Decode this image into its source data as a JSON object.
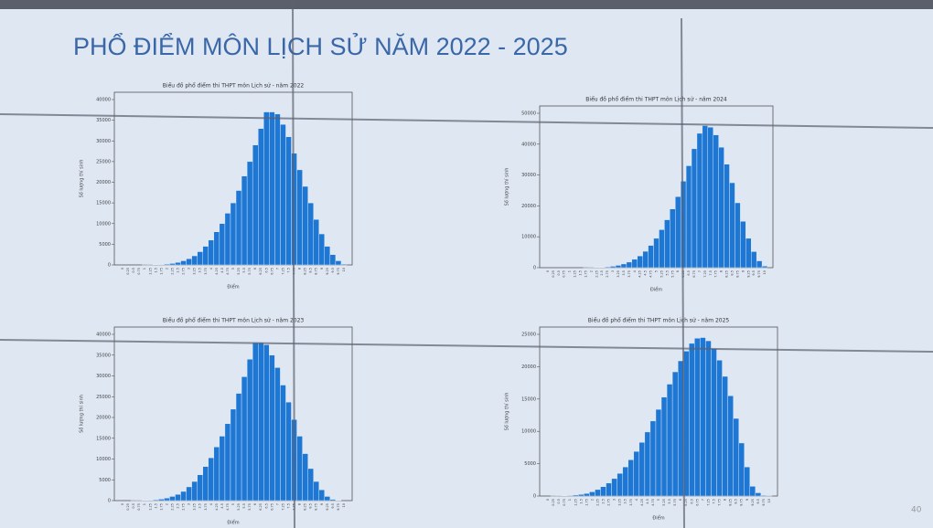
{
  "title": "PHỔ ĐIỂM MÔN LỊCH SỬ NĂM 2022 - 2025",
  "page_number": "40",
  "chart_data": [
    {
      "type": "bar",
      "title": "Biểu đồ phổ điểm thi THPT môn Lịch sử - năm 2022",
      "x_label": "Điểm",
      "y_label": "Số lượng thí sinh",
      "categories": [
        "0",
        "0.25",
        "0.5",
        "0.75",
        "1",
        "1.25",
        "1.5",
        "1.75",
        "2",
        "2.25",
        "2.5",
        "2.75",
        "3",
        "3.25",
        "3.5",
        "3.75",
        "4",
        "4.25",
        "4.5",
        "4.75",
        "5",
        "5.25",
        "5.5",
        "5.75",
        "6",
        "6.25",
        "6.5",
        "6.75",
        "7",
        "7.25",
        "7.5",
        "7.75",
        "8",
        "8.25",
        "8.5",
        "8.75",
        "9",
        "9.25",
        "9.5",
        "9.75",
        "10"
      ],
      "values": [
        0,
        0,
        0,
        0,
        10,
        20,
        50,
        100,
        200,
        350,
        600,
        1000,
        1500,
        2200,
        3200,
        4500,
        6000,
        8000,
        10000,
        12500,
        15000,
        18000,
        21500,
        25000,
        29000,
        33000,
        37000,
        37000,
        36500,
        34000,
        31000,
        27000,
        23000,
        19000,
        15000,
        11000,
        7500,
        4500,
        2500,
        1000,
        200
      ],
      "color": "#1f77d4",
      "ylim": [
        0,
        40000
      ],
      "yticks": [
        0,
        5000,
        10000,
        15000,
        20000,
        25000,
        30000,
        35000,
        40000
      ]
    },
    {
      "type": "bar",
      "title": "Biểu đồ phổ điểm thi THPT môn Lịch sử - năm 2024",
      "x_label": "Điểm",
      "y_label": "Số lượng thí sinh",
      "categories": [
        "0",
        "0.25",
        "0.5",
        "0.75",
        "1",
        "1.25",
        "1.5",
        "1.75",
        "2",
        "2.25",
        "2.5",
        "2.75",
        "3",
        "3.25",
        "3.5",
        "3.75",
        "4",
        "4.25",
        "4.5",
        "4.75",
        "5",
        "5.25",
        "5.5",
        "5.75",
        "6",
        "6.25",
        "6.5",
        "6.75",
        "7",
        "7.25",
        "7.5",
        "7.75",
        "8",
        "8.25",
        "8.5",
        "8.75",
        "9",
        "9.25",
        "9.5",
        "9.75",
        "10"
      ],
      "values": [
        0,
        0,
        0,
        0,
        0,
        0,
        0,
        10,
        30,
        60,
        120,
        250,
        450,
        750,
        1200,
        1800,
        2700,
        3800,
        5300,
        7200,
        9500,
        12300,
        15500,
        19000,
        23000,
        28000,
        33000,
        38500,
        43500,
        46000,
        45500,
        43000,
        39000,
        33500,
        27500,
        21000,
        15000,
        9500,
        5200,
        2200,
        500
      ],
      "color": "#1f77d4",
      "ylim": [
        0,
        50000
      ],
      "yticks": [
        0,
        10000,
        20000,
        30000,
        40000,
        50000
      ]
    },
    {
      "type": "bar",
      "title": "Biểu đồ phổ điểm thi THPT môn Lịch sử - năm 2023",
      "x_label": "Điểm",
      "y_label": "Số lượng thí sinh",
      "categories": [
        "0",
        "0.25",
        "0.5",
        "0.75",
        "1",
        "1.25",
        "1.5",
        "1.75",
        "2",
        "2.25",
        "2.5",
        "2.75",
        "3",
        "3.25",
        "3.5",
        "3.75",
        "4",
        "4.25",
        "4.5",
        "4.75",
        "5",
        "5.25",
        "5.5",
        "5.75",
        "6",
        "6.25",
        "6.5",
        "6.75",
        "7",
        "7.25",
        "7.5",
        "7.75",
        "8",
        "8.25",
        "8.5",
        "8.75",
        "9",
        "9.25",
        "9.5",
        "9.75",
        "10"
      ],
      "values": [
        0,
        0,
        10,
        20,
        50,
        100,
        200,
        350,
        600,
        1000,
        1500,
        2200,
        3300,
        4600,
        6200,
        8200,
        10300,
        12900,
        15500,
        18500,
        22000,
        25800,
        29800,
        34000,
        38000,
        38000,
        37500,
        35000,
        32000,
        27800,
        23700,
        19500,
        15500,
        11300,
        7700,
        4600,
        2600,
        1000,
        300,
        50,
        0
      ],
      "color": "#1f77d4",
      "ylim": [
        0,
        40000
      ],
      "yticks": [
        0,
        5000,
        10000,
        15000,
        20000,
        25000,
        30000,
        35000,
        40000
      ]
    },
    {
      "type": "bar",
      "title": "Biểu đồ phổ điểm thi THPT môn Lịch sử - năm 2025",
      "x_label": "Điểm",
      "y_label": "Số lượng thí sinh",
      "categories": [
        "0",
        "0.25",
        "0.5",
        "0.75",
        "1",
        "1.25",
        "1.5",
        "1.75",
        "2",
        "2.25",
        "2.5",
        "2.75",
        "3",
        "3.25",
        "3.5",
        "3.75",
        "4",
        "4.25",
        "4.5",
        "4.75",
        "5",
        "5.25",
        "5.5",
        "5.75",
        "6",
        "6.25",
        "6.5",
        "6.75",
        "7",
        "7.25",
        "7.5",
        "7.75",
        "8",
        "8.25",
        "8.5",
        "8.75",
        "9",
        "9.25",
        "9.5",
        "9.75",
        "10"
      ],
      "values": [
        0,
        10,
        20,
        40,
        80,
        150,
        250,
        400,
        650,
        1000,
        1450,
        2000,
        2700,
        3500,
        4500,
        5600,
        6900,
        8300,
        9900,
        11600,
        13400,
        15300,
        17300,
        19200,
        20900,
        22400,
        23600,
        24400,
        24500,
        24000,
        22800,
        21000,
        18500,
        15500,
        12000,
        8200,
        4500,
        1500,
        500,
        100,
        20
      ],
      "color": "#1f77d4",
      "ylim": [
        0,
        25000
      ],
      "yticks": [
        0,
        5000,
        10000,
        15000,
        20000,
        25000
      ]
    }
  ]
}
